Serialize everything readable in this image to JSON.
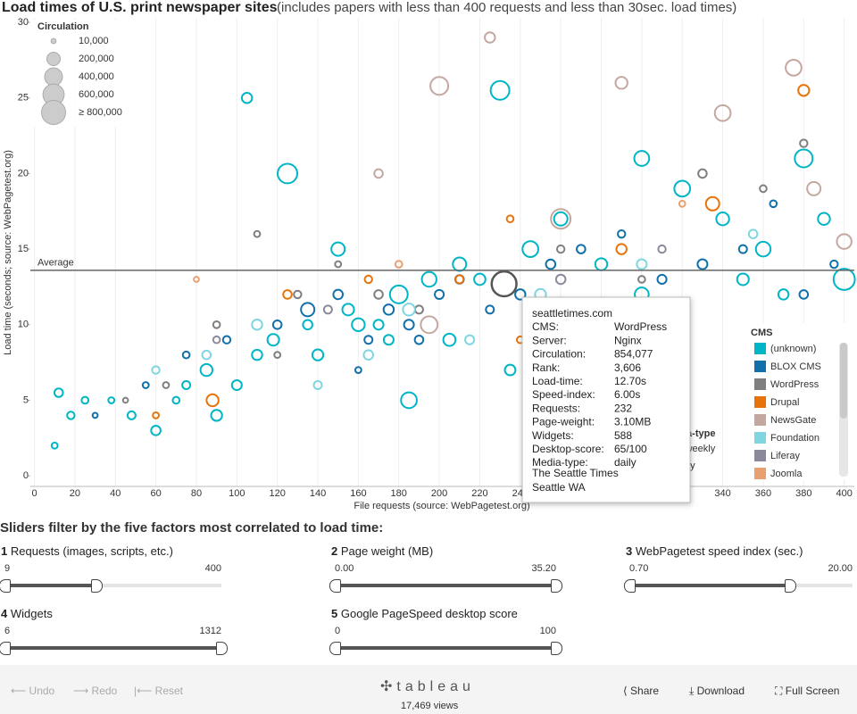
{
  "chart_data": {
    "type": "scatter",
    "title": "Load times of U.S. print newspaper sites",
    "subtitle": "(includes papers with less than 400 requests and less than 30sec. load times)",
    "x_label": "File requests (source: WebPagetest.org)",
    "y_label": "Load time (seconds; source: WebPagetest.org)",
    "xlim": [
      -2,
      405
    ],
    "ylim": [
      -0.7,
      30.3
    ],
    "xticks": [
      0,
      20,
      40,
      60,
      80,
      100,
      120,
      140,
      160,
      180,
      200,
      220,
      240,
      260,
      280,
      300,
      320,
      340,
      360,
      380,
      400
    ],
    "yticks": [
      0,
      5,
      10,
      15,
      20,
      25,
      30
    ],
    "grid": "x",
    "reference_line": {
      "label": "Average",
      "value": 13.6
    },
    "size_legend": {
      "title": "Circulation",
      "sizes": [
        {
          "value": 10000,
          "label": "10,000"
        },
        {
          "value": 200000,
          "label": "200,000"
        },
        {
          "value": 400000,
          "label": "400,000"
        },
        {
          "value": 600000,
          "label": "600,000"
        },
        {
          "value": 800000,
          "label": "≥ 800,000"
        }
      ]
    },
    "color_legend_title": "CMS",
    "shape_legend": {
      "title": "Media-type",
      "items": [
        "altweekly",
        "daily"
      ]
    },
    "series": [
      {
        "name": "(unknown)",
        "color": "#00b5c6",
        "x": [
          10,
          12,
          18,
          25,
          38,
          48,
          60,
          70,
          85,
          90,
          100,
          105,
          118,
          125,
          140,
          150,
          160,
          170,
          180,
          185,
          195,
          210,
          220,
          230,
          245,
          260,
          280,
          300,
          320,
          340,
          360,
          370,
          380,
          390,
          400,
          135,
          205,
          235,
          300,
          350,
          75,
          110,
          155,
          175
        ],
        "values": [
          2,
          5.5,
          4,
          5,
          5,
          4,
          3,
          5,
          7,
          4,
          6,
          25,
          9,
          20,
          8,
          15,
          10,
          10,
          12,
          5,
          13,
          14,
          13,
          25.5,
          15,
          17,
          14,
          21,
          19,
          17,
          15,
          12,
          21,
          17,
          13,
          10,
          9,
          7,
          12,
          13,
          6,
          8,
          11,
          9
        ],
        "sizes": [
          20000,
          60000,
          40000,
          30000,
          20000,
          50000,
          80000,
          30000,
          150000,
          120000,
          90000,
          100000,
          140000,
          500000,
          120000,
          200000,
          180000,
          90000,
          400000,
          300000,
          250000,
          200000,
          130000,
          450000,
          300000,
          200000,
          150000,
          260000,
          300000,
          180000,
          250000,
          100000,
          400000,
          150000,
          600000,
          80000,
          160000,
          110000,
          220000,
          140000,
          50000,
          100000,
          140000,
          90000
        ]
      },
      {
        "name": "BLOX CMS",
        "color": "#1170aa",
        "x": [
          30,
          55,
          75,
          95,
          120,
          135,
          150,
          165,
          175,
          185,
          200,
          210,
          225,
          240,
          255,
          270,
          290,
          310,
          330,
          350,
          365,
          380,
          395,
          160,
          190
        ],
        "values": [
          4,
          6,
          8,
          9,
          10,
          11,
          12,
          9,
          11,
          10,
          12,
          13,
          11,
          12,
          14,
          15,
          16,
          13,
          14,
          15,
          18,
          12,
          14,
          7,
          9
        ],
        "sizes": [
          10000,
          20000,
          30000,
          40000,
          60000,
          200000,
          80000,
          50000,
          100000,
          90000,
          70000,
          60000,
          50000,
          100000,
          80000,
          60000,
          40000,
          70000,
          90000,
          50000,
          30000,
          60000,
          40000,
          20000,
          60000
        ]
      },
      {
        "name": "WordPress",
        "color": "#7f7f7f",
        "x": [
          45,
          65,
          90,
          110,
          130,
          150,
          170,
          190,
          232,
          260,
          300,
          330,
          360,
          380,
          120
        ],
        "values": [
          5,
          6,
          10,
          16,
          12,
          14,
          12,
          11,
          12.7,
          15,
          13,
          20,
          19,
          22,
          8
        ],
        "sizes": [
          10000,
          20000,
          30000,
          20000,
          40000,
          20000,
          60000,
          50000,
          854077,
          40000,
          30000,
          60000,
          30000,
          40000,
          20000
        ],
        "highlight": 8
      },
      {
        "name": "Drupal",
        "color": "#e8730a",
        "x": [
          60,
          88,
          125,
          165,
          210,
          235,
          290,
          335,
          380,
          240
        ],
        "values": [
          4,
          5,
          12,
          13,
          13,
          17,
          15,
          18,
          25.5,
          9
        ],
        "sizes": [
          20000,
          150000,
          60000,
          40000,
          50000,
          30000,
          100000,
          200000,
          120000,
          30000
        ],
        "shape": "circle"
      },
      {
        "name": "NewsGate",
        "color": "#c4a8a0",
        "x": [
          170,
          200,
          225,
          260,
          290,
          340,
          375,
          385,
          400,
          195
        ],
        "values": [
          20,
          25.8,
          29,
          17,
          26,
          24,
          27,
          19,
          15.5,
          10
        ],
        "sizes": [
          60000,
          400000,
          100000,
          500000,
          150000,
          300000,
          300000,
          200000,
          250000,
          350000
        ]
      },
      {
        "name": "Foundation",
        "color": "#7fd6e0",
        "x": [
          60,
          85,
          110,
          140,
          165,
          185,
          215,
          250,
          300,
          355
        ],
        "values": [
          7,
          8,
          10,
          6,
          8,
          11,
          9,
          12,
          14,
          16
        ],
        "sizes": [
          40000,
          60000,
          100000,
          50000,
          80000,
          150000,
          70000,
          120000,
          90000,
          60000
        ]
      },
      {
        "name": "Liferay",
        "color": "#8a8a9a",
        "x": [
          90,
          145,
          260,
          310
        ],
        "values": [
          9,
          11,
          13,
          15
        ],
        "sizes": [
          30000,
          50000,
          80000,
          40000
        ]
      },
      {
        "name": "Joomla",
        "color": "#e8a070",
        "x": [
          80,
          180,
          320
        ],
        "values": [
          13,
          14,
          18
        ],
        "sizes": [
          10000,
          30000,
          20000
        ]
      }
    ],
    "tooltip": {
      "site": "seattletimes.com",
      "rows": [
        [
          "CMS:",
          "WordPress"
        ],
        [
          "Server:",
          "Nginx"
        ],
        [
          "Circulation:",
          "854,077"
        ],
        [
          "Rank:",
          "3,606"
        ],
        [
          "Load-time:",
          "12.70s"
        ],
        [
          "Speed-index:",
          "6.00s"
        ],
        [
          "Requests:",
          "232"
        ],
        [
          "Page-weight:",
          "3.10MB"
        ],
        [
          "Widgets:",
          "588"
        ],
        [
          "Desktop-score:",
          "65/100"
        ],
        [
          "Media-type:",
          "daily"
        ]
      ],
      "name": "The Seattle Times",
      "location": "Seattle WA"
    }
  },
  "sliders_header": "Sliders filter by the five factors most correlated to load time:",
  "sliders": [
    {
      "index": 1,
      "label": "Requests (images, scripts, etc.)",
      "min": 9,
      "max": 400,
      "low": 9,
      "high": 175
    },
    {
      "index": 2,
      "label": "Page weight (MB)",
      "min": {
        "value": 0,
        "label": "0.00"
      },
      "max": {
        "value": 35.2,
        "label": "35.20"
      },
      "low": 0,
      "high": 35.2
    },
    {
      "index": 3,
      "label": "WebPagetest speed index (sec.)",
      "min": {
        "value": 0.7,
        "label": "0.70"
      },
      "max": {
        "value": 20,
        "label": "20.00"
      },
      "low": 0.7,
      "high": 14.6
    },
    {
      "index": 4,
      "label": "Widgets",
      "min": 6,
      "max": 1312,
      "low": 6,
      "high": 1312
    },
    {
      "index": 5,
      "label": "Google PageSpeed desktop score",
      "min": 0,
      "max": 100,
      "low": 0,
      "high": 100
    }
  ],
  "toolbar": {
    "undo": "Undo",
    "redo": "Redo",
    "reset": "Reset",
    "logo": "tableau",
    "views": "17,469 views",
    "share": "Share",
    "download": "Download",
    "fullscreen": "Full Screen"
  }
}
